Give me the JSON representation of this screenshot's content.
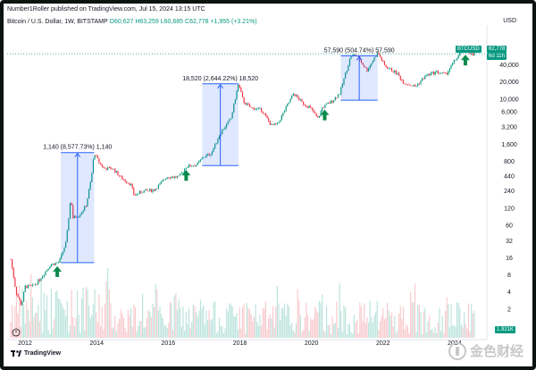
{
  "header": {
    "author": "Number1Roller published on TradingView.com, Jul 15, 2024 13:15 UTC",
    "symbol": "Bitcoin / U.S. Dollar, 1W, BITSTAMP",
    "open": "O60,627",
    "high": "H63,259",
    "low": "L60,685",
    "close": "C62,778",
    "change": "+1,955 (+3.21%)",
    "currency": "USD"
  },
  "footer": {
    "brand": "TradingView",
    "watermark": "金色财经"
  },
  "colors": {
    "up": "#089981",
    "down": "#f23645",
    "box": "#2962ff",
    "arrow": "#0b8a4d",
    "last_price": "#089981"
  },
  "price_tags": {
    "symbol": "BTCUSD",
    "last": "62,778",
    "countdown": "6d 11h",
    "volume": "1.921K"
  },
  "chart_data": {
    "type": "candlestick",
    "title": "",
    "xlabel": "",
    "ylabel": "",
    "y_scale": "log",
    "ylim": [
      1,
      130000
    ],
    "x_range": [
      2011.5,
      2024.9
    ],
    "x_ticks": [
      "2012",
      "2014",
      "2016",
      "2018",
      "2020",
      "2022",
      "2024"
    ],
    "y_ticks": [
      "40,000",
      "20,000",
      "10,000",
      "6,000",
      "3,200",
      "1,600",
      "800",
      "440",
      "240",
      "120",
      "60",
      "32",
      "16",
      "8",
      "4",
      "2"
    ],
    "price_path": [
      [
        2011.6,
        15
      ],
      [
        2011.75,
        4
      ],
      [
        2011.9,
        2.3
      ],
      [
        2012.0,
        5
      ],
      [
        2012.2,
        5
      ],
      [
        2012.4,
        6.5
      ],
      [
        2012.7,
        12
      ],
      [
        2012.95,
        13.5
      ],
      [
        2013.15,
        30
      ],
      [
        2013.28,
        200
      ],
      [
        2013.33,
        80
      ],
      [
        2013.5,
        90
      ],
      [
        2013.7,
        130
      ],
      [
        2013.85,
        400
      ],
      [
        2013.93,
        1140
      ],
      [
        2014.05,
        800
      ],
      [
        2014.2,
        600
      ],
      [
        2014.45,
        600
      ],
      [
        2014.7,
        400
      ],
      [
        2014.95,
        320
      ],
      [
        2015.05,
        200
      ],
      [
        2015.3,
        240
      ],
      [
        2015.6,
        250
      ],
      [
        2015.8,
        330
      ],
      [
        2015.95,
        430
      ],
      [
        2016.3,
        420
      ],
      [
        2016.5,
        650
      ],
      [
        2016.8,
        700
      ],
      [
        2016.98,
        950
      ],
      [
        2017.2,
        1100
      ],
      [
        2017.45,
        2500
      ],
      [
        2017.75,
        4500
      ],
      [
        2017.96,
        18520
      ],
      [
        2018.1,
        9000
      ],
      [
        2018.3,
        7000
      ],
      [
        2018.6,
        6500
      ],
      [
        2018.88,
        3400
      ],
      [
        2019.05,
        3600
      ],
      [
        2019.5,
        12500
      ],
      [
        2019.75,
        8500
      ],
      [
        2019.95,
        7200
      ],
      [
        2020.18,
        4500
      ],
      [
        2020.3,
        7000
      ],
      [
        2020.6,
        9500
      ],
      [
        2020.8,
        13000
      ],
      [
        2020.95,
        28000
      ],
      [
        2021.1,
        57590
      ],
      [
        2021.25,
        60000
      ],
      [
        2021.55,
        32000
      ],
      [
        2021.85,
        66000
      ],
      [
        2022.05,
        38000
      ],
      [
        2022.4,
        28000
      ],
      [
        2022.55,
        20000
      ],
      [
        2022.9,
        16500
      ],
      [
        2023.2,
        26000
      ],
      [
        2023.5,
        30000
      ],
      [
        2023.75,
        27000
      ],
      [
        2023.95,
        42000
      ],
      [
        2024.2,
        71000
      ],
      [
        2024.4,
        68000
      ],
      [
        2024.53,
        57000
      ],
      [
        2024.55,
        62778
      ]
    ],
    "annotations": [
      {
        "label": "1,140 (8,577.73%) 1,140",
        "x0": 2013.0,
        "x1": 2013.93,
        "low": 13.14,
        "high": 1140
      },
      {
        "label": "18,520 (2,644.22%) 18,520",
        "x0": 2016.95,
        "x1": 2017.96,
        "low": 675,
        "high": 18520
      },
      {
        "label": "57,590 (504.74%) 57,590",
        "x0": 2020.82,
        "x1": 2021.85,
        "low": 9530,
        "high": 57590
      }
    ],
    "halving_arrows": [
      2012.9,
      2016.5,
      2020.37,
      2024.3
    ],
    "last_price": 62778
  }
}
